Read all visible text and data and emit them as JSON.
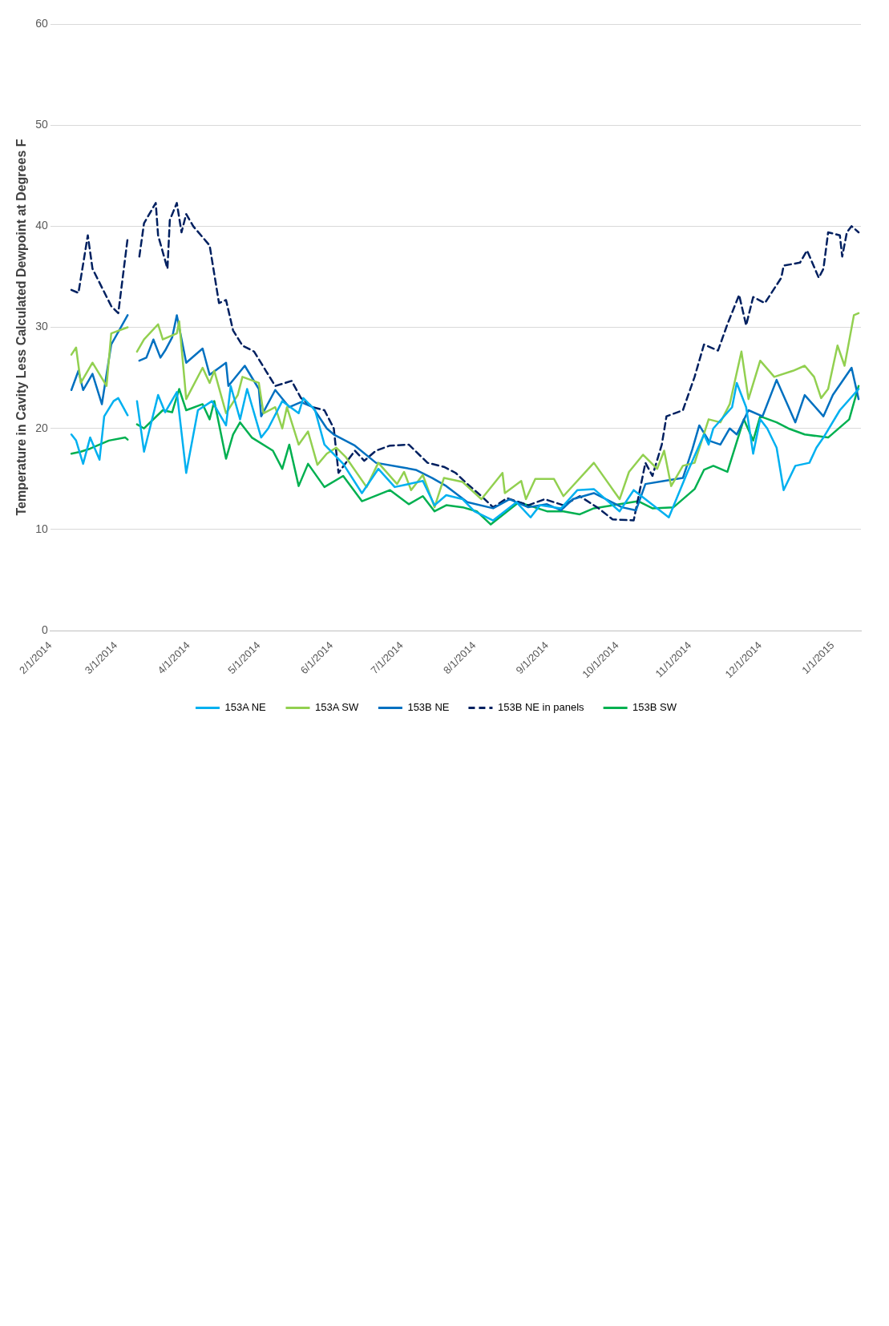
{
  "chart_data": {
    "type": "line",
    "ylabel": "Temperature in Cavity Less Calculated Dewpoint at Degrees F",
    "ylim": [
      0,
      60
    ],
    "yticks": [
      0,
      10,
      20,
      30,
      40,
      50,
      60
    ],
    "xlim": [
      "2014-02-01",
      "2015-01-13"
    ],
    "xticks": [
      {
        "value": "2014-02-01",
        "label": "2/1/2014"
      },
      {
        "value": "2014-03-01",
        "label": "3/1/2014"
      },
      {
        "value": "2014-04-01",
        "label": "4/1/2014"
      },
      {
        "value": "2014-05-01",
        "label": "5/1/2014"
      },
      {
        "value": "2014-06-01",
        "label": "6/1/2014"
      },
      {
        "value": "2014-07-01",
        "label": "7/1/2014"
      },
      {
        "value": "2014-08-01",
        "label": "8/1/2014"
      },
      {
        "value": "2014-09-01",
        "label": "9/1/2014"
      },
      {
        "value": "2014-10-01",
        "label": "10/1/2014"
      },
      {
        "value": "2014-11-01",
        "label": "11/1/2014"
      },
      {
        "value": "2014-12-01",
        "label": "12/1/2014"
      },
      {
        "value": "2015-01-01",
        "label": "1/1/2015"
      }
    ],
    "grid": "y",
    "legend": "bottom",
    "marker": "none",
    "series": [
      {
        "name": "153A NE",
        "color": "#00b0f0",
        "line_style": "solid",
        "x": [
          "2014-02-10",
          "2014-02-12",
          "2014-02-15",
          "2014-02-18",
          "2014-02-22",
          "2014-02-24",
          "2014-02-28",
          "2014-03-02",
          "2014-03-06",
          "2014-03-08",
          "2014-03-10",
          "2014-03-13",
          "2014-03-19",
          "2014-03-22",
          "2014-03-27",
          "2014-03-31",
          "2014-04-05",
          "2014-04-11",
          "2014-04-17",
          "2014-04-19",
          "2014-04-23",
          "2014-04-26",
          "2014-05-02",
          "2014-05-05",
          "2014-05-11",
          "2014-05-18",
          "2014-05-20",
          "2014-05-25",
          "2014-05-29",
          "2014-06-06",
          "2014-06-14",
          "2014-06-21",
          "2014-06-28",
          "2014-07-10",
          "2014-07-15",
          "2014-07-20",
          "2014-07-27",
          "2014-08-01",
          "2014-08-09",
          "2014-08-19",
          "2014-08-25",
          "2014-08-29",
          "2014-09-07",
          "2014-09-14",
          "2014-09-21",
          "2014-10-02",
          "2014-10-08",
          "2014-10-23",
          "2014-10-31",
          "2014-11-07",
          "2014-11-09",
          "2014-11-11",
          "2014-11-19",
          "2014-11-21",
          "2014-11-25",
          "2014-11-28",
          "2014-12-01",
          "2014-12-04",
          "2014-12-08",
          "2014-12-11",
          "2014-12-16",
          "2014-12-22",
          "2014-12-25",
          "2014-12-28",
          "2015-01-04",
          "2015-01-12"
        ],
        "values": [
          19.4,
          18.8,
          16.5,
          19.1,
          16.9,
          21.2,
          22.7,
          23.0,
          21.3,
          null,
          22.7,
          17.7,
          23.3,
          21.6,
          23.6,
          15.6,
          21.8,
          22.7,
          20.3,
          24.2,
          20.9,
          23.9,
          19.1,
          20.0,
          22.7,
          21.5,
          23.0,
          21.8,
          18.4,
          16.5,
          13.6,
          16.0,
          14.2,
          14.8,
          12.4,
          13.4,
          13.0,
          11.8,
          10.9,
          12.7,
          11.2,
          12.4,
          12.1,
          13.9,
          14.0,
          11.8,
          13.9,
          11.2,
          15.7,
          19.4,
          18.4,
          20.0,
          22.1,
          24.5,
          22.1,
          17.5,
          20.9,
          20.0,
          18.1,
          13.9,
          16.3,
          16.6,
          18.1,
          19.1,
          21.8,
          23.9
        ]
      },
      {
        "name": "153A SW",
        "color": "#92d050",
        "line_style": "solid",
        "x": [
          "2014-02-10",
          "2014-02-12",
          "2014-02-14",
          "2014-02-19",
          "2014-02-25",
          "2014-02-27",
          "2014-03-06",
          "2014-03-08",
          "2014-03-10",
          "2014-03-13",
          "2014-03-19",
          "2014-03-21",
          "2014-03-27",
          "2014-03-28",
          "2014-03-31",
          "2014-04-07",
          "2014-04-10",
          "2014-04-12",
          "2014-04-17",
          "2014-04-22",
          "2014-04-24",
          "2014-05-01",
          "2014-05-03",
          "2014-05-08",
          "2014-05-11",
          "2014-05-13",
          "2014-05-18",
          "2014-05-22",
          "2014-05-26",
          "2014-05-30",
          "2014-06-03",
          "2014-06-07",
          "2014-06-16",
          "2014-06-21",
          "2014-06-29",
          "2014-07-02",
          "2014-07-05",
          "2014-07-10",
          "2014-07-15",
          "2014-07-19",
          "2014-07-27",
          "2014-08-04",
          "2014-08-13",
          "2014-08-14",
          "2014-08-21",
          "2014-08-23",
          "2014-08-27",
          "2014-09-04",
          "2014-09-08",
          "2014-09-21",
          "2014-10-02",
          "2014-10-06",
          "2014-10-12",
          "2014-10-18",
          "2014-10-21",
          "2014-10-24",
          "2014-10-29",
          "2014-11-03",
          "2014-11-09",
          "2014-11-14",
          "2014-11-18",
          "2014-11-23",
          "2014-11-26",
          "2014-12-01",
          "2014-12-07",
          "2014-12-15",
          "2014-12-20",
          "2014-12-24",
          "2014-12-27",
          "2014-12-30",
          "2015-01-03",
          "2015-01-06",
          "2015-01-10",
          "2015-01-12"
        ],
        "values": [
          27.3,
          28.0,
          24.5,
          26.5,
          24.2,
          29.4,
          30.0,
          null,
          27.6,
          28.8,
          30.3,
          28.8,
          29.4,
          30.6,
          22.9,
          26.0,
          24.5,
          25.7,
          21.5,
          23.3,
          25.1,
          24.5,
          21.5,
          22.1,
          20.0,
          22.1,
          18.4,
          19.7,
          16.4,
          17.5,
          18.1,
          17.2,
          14.2,
          16.6,
          14.5,
          15.7,
          13.9,
          15.4,
          12.2,
          15.1,
          14.7,
          13.0,
          15.6,
          13.6,
          14.8,
          13.0,
          15.0,
          15.0,
          13.3,
          16.6,
          13.0,
          15.7,
          17.4,
          16.0,
          17.8,
          14.3,
          16.3,
          16.6,
          20.9,
          20.6,
          22.4,
          27.6,
          22.9,
          26.7,
          25.1,
          25.7,
          26.2,
          25.1,
          23.0,
          23.9,
          28.2,
          26.2,
          31.2,
          31.4
        ]
      },
      {
        "name": "153B NE",
        "color": "#0070c0",
        "line_style": "solid",
        "x": [
          "2014-02-10",
          "2014-02-13",
          "2014-02-15",
          "2014-02-19",
          "2014-02-23",
          "2014-02-27",
          "2014-03-06",
          "2014-03-08",
          "2014-03-11",
          "2014-03-14",
          "2014-03-17",
          "2014-03-20",
          "2014-03-22",
          "2014-03-25",
          "2014-03-27",
          "2014-03-31",
          "2014-04-07",
          "2014-04-10",
          "2014-04-17",
          "2014-04-18",
          "2014-04-25",
          "2014-05-01",
          "2014-05-02",
          "2014-05-08",
          "2014-05-14",
          "2014-05-19",
          "2014-05-24",
          "2014-05-30",
          "2014-06-02",
          "2014-06-11",
          "2014-06-20",
          "2014-06-30",
          "2014-07-07",
          "2014-07-14",
          "2014-07-20",
          "2014-07-29",
          "2014-08-09",
          "2014-08-16",
          "2014-08-24",
          "2014-09-01",
          "2014-09-07",
          "2014-09-12",
          "2014-09-21",
          "2014-10-03",
          "2014-10-09",
          "2014-10-13",
          "2014-10-21",
          "2014-10-29",
          "2014-11-02",
          "2014-11-05",
          "2014-11-09",
          "2014-11-14",
          "2014-11-18",
          "2014-11-21",
          "2014-11-26",
          "2014-12-02",
          "2014-12-08",
          "2014-12-16",
          "2014-12-20",
          "2014-12-28",
          "2015-01-01",
          "2015-01-09",
          "2015-01-12"
        ],
        "values": [
          23.8,
          25.7,
          23.8,
          25.4,
          22.4,
          28.3,
          31.2,
          null,
          26.7,
          27.0,
          28.8,
          27.0,
          27.7,
          29.0,
          31.2,
          26.5,
          27.9,
          25.3,
          26.5,
          24.2,
          26.2,
          23.9,
          21.2,
          23.8,
          22.1,
          22.6,
          22.1,
          20.0,
          19.4,
          18.3,
          16.6,
          16.2,
          15.9,
          15.1,
          14.3,
          12.7,
          12.1,
          13.0,
          12.2,
          12.5,
          11.9,
          13.0,
          13.6,
          12.2,
          11.9,
          14.5,
          14.8,
          15.1,
          17.9,
          20.3,
          18.8,
          18.4,
          20.0,
          19.4,
          21.8,
          21.2,
          24.8,
          20.6,
          23.3,
          21.2,
          23.3,
          26.0,
          22.9
        ]
      },
      {
        "name": "153B NE in panels",
        "color": "#002060",
        "line_style": "dashed",
        "x": [
          "2014-02-10",
          "2014-02-13",
          "2014-02-17",
          "2014-02-19",
          "2014-02-27",
          "2014-03-02",
          "2014-03-06",
          "2014-03-08",
          "2014-03-11",
          "2014-03-13",
          "2014-03-18",
          "2014-03-19",
          "2014-03-23",
          "2014-03-24",
          "2014-03-27",
          "2014-03-29",
          "2014-03-31",
          "2014-04-03",
          "2014-04-10",
          "2014-04-14",
          "2014-04-17",
          "2014-04-20",
          "2014-04-24",
          "2014-04-29",
          "2014-05-04",
          "2014-05-08",
          "2014-05-15",
          "2014-05-19",
          "2014-05-24",
          "2014-05-29",
          "2014-06-02",
          "2014-06-04",
          "2014-06-11",
          "2014-06-15",
          "2014-06-20",
          "2014-06-26",
          "2014-07-04",
          "2014-07-12",
          "2014-07-19",
          "2014-07-24",
          "2014-07-29",
          "2014-08-04",
          "2014-08-09",
          "2014-08-15",
          "2014-08-24",
          "2014-08-31",
          "2014-09-08",
          "2014-09-15",
          "2014-09-23",
          "2014-09-29",
          "2014-10-08",
          "2014-10-13",
          "2014-10-16",
          "2014-10-20",
          "2014-10-22",
          "2014-10-29",
          "2014-11-03",
          "2014-11-07",
          "2014-11-13",
          "2014-11-17",
          "2014-11-22",
          "2014-11-25",
          "2014-11-28",
          "2014-12-03",
          "2014-12-10",
          "2014-12-11",
          "2014-12-18",
          "2014-12-21",
          "2014-12-26",
          "2014-12-28",
          "2014-12-30",
          "2015-01-04",
          "2015-01-05",
          "2015-01-07",
          "2015-01-09",
          "2015-01-12"
        ],
        "values": [
          33.7,
          33.4,
          39.1,
          35.8,
          32.1,
          31.4,
          38.8,
          null,
          37.0,
          40.3,
          42.3,
          39.1,
          35.8,
          40.6,
          42.3,
          39.4,
          41.2,
          40.0,
          38.1,
          32.4,
          32.7,
          29.7,
          28.2,
          27.6,
          25.7,
          24.2,
          24.7,
          23.0,
          22.1,
          21.8,
          20.0,
          15.6,
          17.8,
          16.8,
          17.8,
          18.3,
          18.4,
          16.6,
          16.2,
          15.6,
          14.5,
          13.3,
          12.2,
          13.1,
          12.4,
          13.0,
          12.4,
          13.3,
          12.1,
          11.0,
          10.9,
          16.6,
          15.3,
          18.4,
          21.2,
          21.8,
          25.1,
          28.3,
          27.7,
          30.3,
          33.2,
          30.2,
          33.0,
          32.4,
          34.9,
          36.1,
          36.4,
          37.6,
          34.9,
          35.8,
          39.4,
          39.1,
          37.0,
          39.4,
          40.0,
          39.4
        ]
      },
      {
        "name": "153B SW",
        "color": "#00b050",
        "line_style": "solid",
        "x": [
          "2014-02-10",
          "2014-02-14",
          "2014-02-18",
          "2014-02-26",
          "2014-03-05",
          "2014-03-06",
          "2014-03-08",
          "2014-03-10",
          "2014-03-13",
          "2014-03-21",
          "2014-03-25",
          "2014-03-28",
          "2014-03-31",
          "2014-04-07",
          "2014-04-10",
          "2014-04-12",
          "2014-04-17",
          "2014-04-20",
          "2014-04-23",
          "2014-04-28",
          "2014-05-07",
          "2014-05-11",
          "2014-05-14",
          "2014-05-18",
          "2014-05-22",
          "2014-05-29",
          "2014-06-06",
          "2014-06-14",
          "2014-06-26",
          "2014-07-04",
          "2014-07-10",
          "2014-07-15",
          "2014-07-20",
          "2014-07-27",
          "2014-08-02",
          "2014-08-08",
          "2014-08-20",
          "2014-09-01",
          "2014-09-08",
          "2014-09-15",
          "2014-09-21",
          "2014-10-10",
          "2014-10-16",
          "2014-10-25",
          "2014-11-03",
          "2014-11-07",
          "2014-11-11",
          "2014-11-17",
          "2014-11-19",
          "2014-11-24",
          "2014-11-28",
          "2014-12-01",
          "2014-12-08",
          "2014-12-13",
          "2014-12-20",
          "2014-12-30",
          "2015-01-08",
          "2015-01-12"
        ],
        "values": [
          17.5,
          17.7,
          18.0,
          18.8,
          19.1,
          18.9,
          null,
          20.4,
          20.0,
          21.8,
          21.6,
          23.9,
          21.8,
          22.4,
          20.9,
          22.7,
          17.0,
          19.4,
          20.6,
          19.1,
          17.8,
          16.0,
          18.4,
          14.3,
          16.5,
          14.2,
          15.3,
          12.8,
          13.9,
          12.5,
          13.3,
          11.8,
          12.4,
          12.2,
          11.8,
          10.5,
          12.7,
          11.8,
          11.8,
          11.5,
          12.1,
          12.8,
          12.1,
          12.2,
          14.0,
          15.9,
          16.3,
          15.7,
          17.2,
          20.9,
          18.8,
          21.2,
          20.6,
          20.0,
          19.4,
          19.1,
          20.9,
          24.2
        ]
      }
    ]
  }
}
